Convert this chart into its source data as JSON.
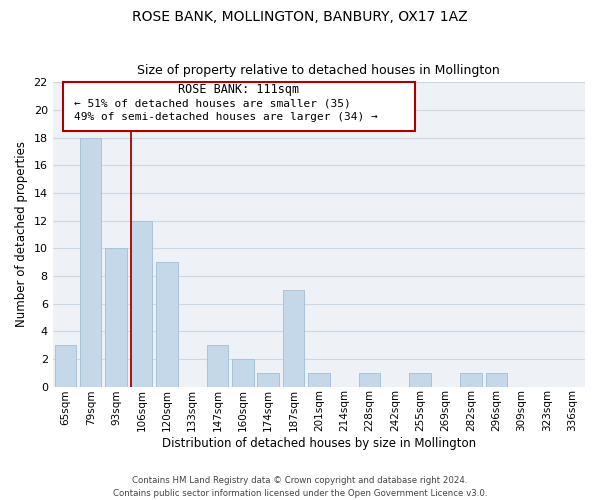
{
  "title": "ROSE BANK, MOLLINGTON, BANBURY, OX17 1AZ",
  "subtitle": "Size of property relative to detached houses in Mollington",
  "xlabel": "Distribution of detached houses by size in Mollington",
  "ylabel": "Number of detached properties",
  "bar_color": "#c5d8ea",
  "bar_edge_color": "#a8c4d8",
  "categories": [
    "65sqm",
    "79sqm",
    "93sqm",
    "106sqm",
    "120sqm",
    "133sqm",
    "147sqm",
    "160sqm",
    "174sqm",
    "187sqm",
    "201sqm",
    "214sqm",
    "228sqm",
    "242sqm",
    "255sqm",
    "269sqm",
    "282sqm",
    "296sqm",
    "309sqm",
    "323sqm",
    "336sqm"
  ],
  "values": [
    3,
    18,
    10,
    12,
    9,
    0,
    3,
    2,
    1,
    7,
    1,
    0,
    1,
    0,
    1,
    0,
    1,
    1,
    0,
    0,
    0
  ],
  "ylim": [
    0,
    22
  ],
  "yticks": [
    0,
    2,
    4,
    6,
    8,
    10,
    12,
    14,
    16,
    18,
    20,
    22
  ],
  "annotation_title": "ROSE BANK: 111sqm",
  "annotation_line1": "← 51% of detached houses are smaller (35)",
  "annotation_line2": "49% of semi-detached houses are larger (34) →",
  "vline_color": "#aa0000",
  "grid_color": "#ccd8e4",
  "background_color": "#eef2f7",
  "footer1": "Contains HM Land Registry data © Crown copyright and database right 2024.",
  "footer2": "Contains public sector information licensed under the Open Government Licence v3.0."
}
